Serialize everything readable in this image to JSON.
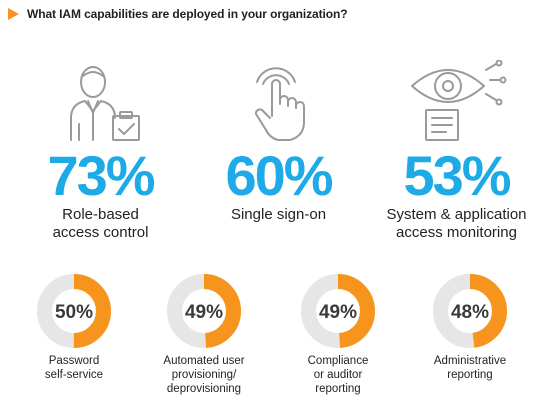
{
  "header": {
    "question": "What IAM capabilities are deployed in your organization?"
  },
  "colors": {
    "accent": "#f7941d",
    "blue": "#1eaae7",
    "ring_bg": "#e6e6e6"
  },
  "chart_data": {
    "type": "pie",
    "title": "What IAM capabilities are deployed in your organization?",
    "highlights": [
      {
        "value": 73,
        "value_label": "73%",
        "label_lines": [
          "Role-based",
          "access control"
        ],
        "icon": "person-clipboard-icon"
      },
      {
        "value": 60,
        "value_label": "60%",
        "label_lines": [
          "Single sign-on"
        ],
        "icon": "touch-hand-icon"
      },
      {
        "value": 53,
        "value_label": "53%",
        "label_lines": [
          "System & application",
          "access monitoring"
        ],
        "icon": "eye-monitor-icon"
      }
    ],
    "rings": [
      {
        "value": 50,
        "value_label": "50%",
        "label_lines": [
          "Password",
          "self-service"
        ]
      },
      {
        "value": 49,
        "value_label": "49%",
        "label_lines": [
          "Automated user",
          "provisioning/",
          "deprovisioning"
        ]
      },
      {
        "value": 49,
        "value_label": "49%",
        "label_lines": [
          "Compliance",
          "or auditor",
          "reporting"
        ]
      },
      {
        "value": 48,
        "value_label": "48%",
        "label_lines": [
          "Administrative",
          "reporting"
        ]
      }
    ]
  }
}
